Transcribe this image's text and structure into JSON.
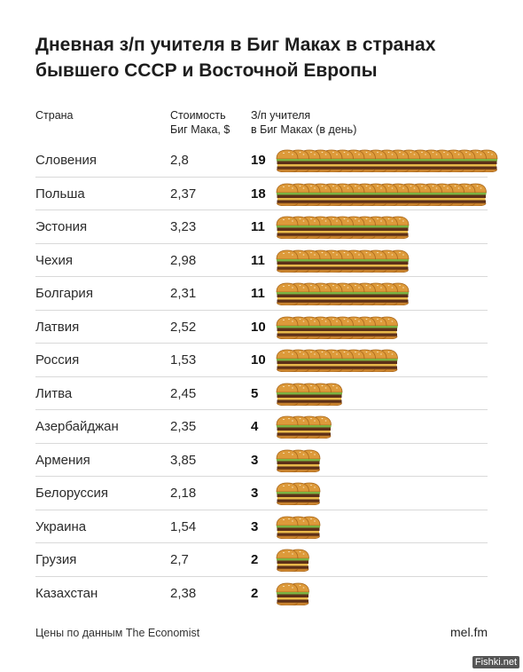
{
  "title": "Дневная з/п учителя в Биг Маках в странах бывшего СССР и Восточной Европы",
  "columns": {
    "country": "Страна",
    "price": "Стоимость\nБиг Мака, $",
    "wage": "З/п учителя\nв Биг Маках (в день)"
  },
  "icon": "burger-icon",
  "chart_data": {
    "type": "table",
    "rows": [
      {
        "country": "Словения",
        "price": "2,8",
        "wage": 19
      },
      {
        "country": "Польша",
        "price": "2,37",
        "wage": 18
      },
      {
        "country": "Эстония",
        "price": "3,23",
        "wage": 11
      },
      {
        "country": "Чехия",
        "price": "2,98",
        "wage": 11
      },
      {
        "country": "Болгария",
        "price": "2,31",
        "wage": 11
      },
      {
        "country": "Латвия",
        "price": "2,52",
        "wage": 10
      },
      {
        "country": "Россия",
        "price": "1,53",
        "wage": 10
      },
      {
        "country": "Литва",
        "price": "2,45",
        "wage": 5
      },
      {
        "country": "Азербайджан",
        "price": "2,35",
        "wage": 4
      },
      {
        "country": "Армения",
        "price": "3,85",
        "wage": 3
      },
      {
        "country": "Белоруссия",
        "price": "2,18",
        "wage": 3
      },
      {
        "country": "Украина",
        "price": "1,54",
        "wage": 3
      },
      {
        "country": "Грузия",
        "price": "2,7",
        "wage": 2
      },
      {
        "country": "Казахстан",
        "price": "2,38",
        "wage": 2
      }
    ]
  },
  "footer": {
    "source": "Цены по данным The Economist",
    "brand": "mel.fm"
  },
  "watermark": "Fishki.net"
}
